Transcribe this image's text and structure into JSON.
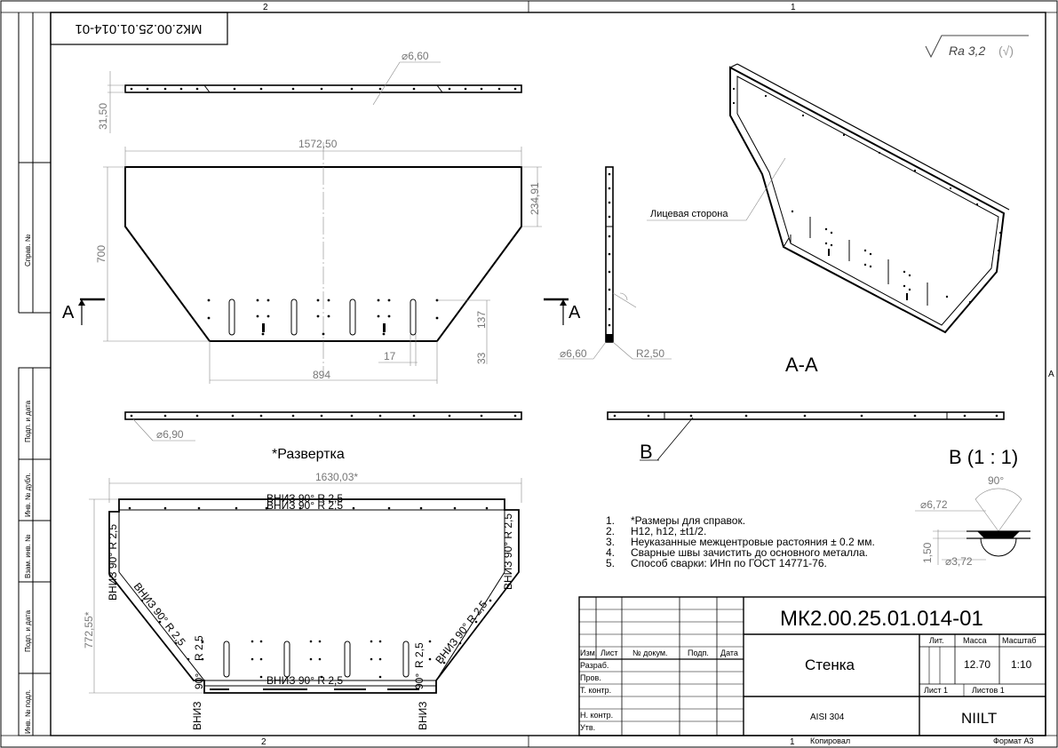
{
  "zones": {
    "top_left": "2",
    "top_right": "1",
    "bottom_left": "2",
    "bottom_right": "1",
    "right_side": "A"
  },
  "doc_code_rotated": "МК2.00.25.01.014-01",
  "roughness": {
    "symbol_text": "Ra 3,2",
    "paren_mark": "(√)"
  },
  "side_stamp": {
    "sprav": "Справ. №",
    "podp_data_1": "Подп. и дата",
    "inv_dubl": "Инв. № дубл.",
    "vzam_inv": "Взам. инв. №",
    "podp_data_2": "Подп. и дата",
    "inv_podl": "Инв. № подл."
  },
  "dims": {
    "d660_top": "⌀6,60",
    "d3150": "31,50",
    "d157250": "1572,50",
    "d23491": "234,91",
    "d700": "700",
    "d137": "137",
    "d17": "17",
    "d33": "33",
    "d894": "894",
    "d690": "⌀6,90",
    "d660_side": "⌀6,60",
    "r250": "R2,50",
    "d163003": "1630,03*",
    "d77255": "772,55*",
    "d90deg": "90°",
    "d672": "⌀6,72",
    "d150": "1,50",
    "d372": "⌀3,72"
  },
  "section_marks": {
    "left": "A",
    "right": "A"
  },
  "labels": {
    "face_side": "Лицевая сторона",
    "section_aa": "A-A",
    "view_b_marker": "B",
    "view_b_title": "B (1 : 1)",
    "razvertka": "*Развертка"
  },
  "bend_notes": {
    "top": "ВНИЗ 90°  R 2,5",
    "top_overlap": "ВНИЗ 90°  R 2,5",
    "left_vertical": "ВНИЗ 90°  R 2,5",
    "right_vertical": "ВНИЗ 90°  R 2,5",
    "left_diag": "ВНИЗ 90°  R 2,5",
    "right_diag": "ВНИЗ 90°  R 2,5",
    "left_small": "R 2,5",
    "right_small": "R 2,5",
    "bottom": "ВНИЗ 90°  R 2,5",
    "left_low": "90°",
    "right_low": "90°",
    "bottom_left_v": "ВНИЗ",
    "bottom_right_v": "ВНИЗ"
  },
  "notes": [
    {
      "n": "1.",
      "text": "*Размеры для справок."
    },
    {
      "n": "2.",
      "text": "H12, h12, ±t1/2."
    },
    {
      "n": "3.",
      "text": "Неуказанные межцентровые растояния ± 0.2 мм."
    },
    {
      "n": "4.",
      "text": "Сварные швы зачистить до основного металла."
    },
    {
      "n": "5.",
      "text": "Способ сварки: ИНп по ГОСТ 14771-76."
    }
  ],
  "title_block": {
    "doc_code": "МК2.00.25.01.014-01",
    "name": "Стенка",
    "material": "AISI 304",
    "lit": "Лит.",
    "massa": "Масса",
    "masshtab": "Масштаб",
    "massa_value": "12.70",
    "scale_value": "1:10",
    "list": "Лист 1",
    "listov": "Листов 1",
    "company": "NIILT",
    "col_izm": "Изм.",
    "col_list": "Лист",
    "col_doc": "№ докум.",
    "col_podp": "Подп.",
    "col_data": "Дата",
    "razrab": "Разраб.",
    "prov": "Пров.",
    "t_kontr": "Т. контр.",
    "n_kontr": "Н. контр.",
    "utv": "Утв."
  },
  "footer": {
    "kopiroval": "Копировал",
    "format": "Формат А3"
  }
}
